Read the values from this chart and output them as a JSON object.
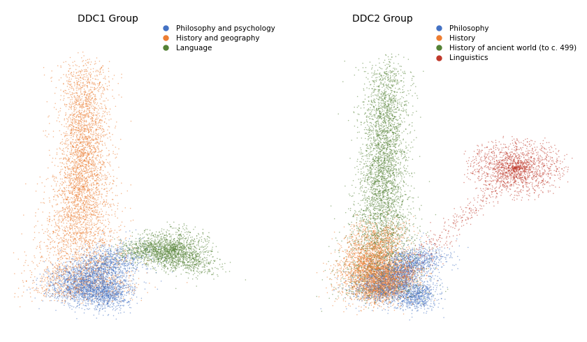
{
  "title_left": "DDC1 Group",
  "title_right": "DDC2 Group",
  "legend_left": [
    {
      "label": "Philosophy and psychology",
      "color": "#4472C4"
    },
    {
      "label": "History and geography",
      "color": "#ED7D31"
    },
    {
      "label": "Language",
      "color": "#548235"
    }
  ],
  "legend_right": [
    {
      "label": "Philosophy",
      "color": "#4472C4"
    },
    {
      "label": "History",
      "color": "#ED7D31"
    },
    {
      "label": "History of ancient world (to c. 499)",
      "color": "#548235"
    },
    {
      "label": "Linguistics",
      "color": "#C0392B"
    }
  ],
  "seed": 42,
  "point_size": 1.2,
  "point_alpha": 0.55,
  "bg_color": "#ffffff"
}
